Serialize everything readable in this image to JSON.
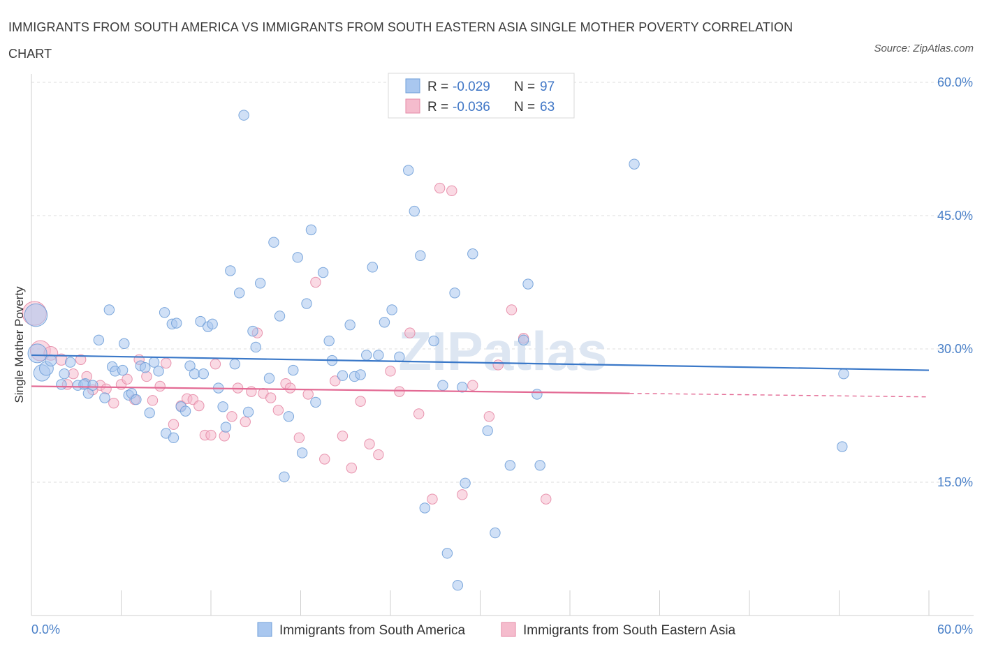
{
  "title": "IMMIGRANTS FROM SOUTH AMERICA VS IMMIGRANTS FROM SOUTH EASTERN ASIA SINGLE MOTHER POVERTY CORRELATION CHART",
  "source": "Source: ZipAtlas.com",
  "watermark": "ZIPatlas",
  "colors": {
    "blue_fill": "#a9c7ef",
    "blue_stroke": "#6f9fd8",
    "blue_line": "#3a78c8",
    "pink_fill": "#f5bccd",
    "pink_stroke": "#e58aa6",
    "pink_line": "#e36a94",
    "axis_text": "#4a80c8",
    "grid": "#dddddd"
  },
  "legend_top": {
    "rows": [
      {
        "r_label": "R =",
        "r_value": "-0.029",
        "n_label": "N =",
        "n_value": "97",
        "series": "blue"
      },
      {
        "r_label": "R =",
        "r_value": "-0.036",
        "n_label": "N =",
        "n_value": "63",
        "series": "pink"
      }
    ]
  },
  "chart_data": {
    "type": "scatter",
    "title": "IMMIGRANTS FROM SOUTH AMERICA VS IMMIGRANTS FROM SOUTH EASTERN ASIA SINGLE MOTHER POVERTY CORRELATION CHART",
    "xlabel": "",
    "ylabel": "Single Mother Poverty",
    "xlim": [
      0,
      60
    ],
    "ylim": [
      0,
      60
    ],
    "x_tick_labels": [
      "0.0%",
      "60.0%"
    ],
    "y_tick_labels": [
      "15.0%",
      "30.0%",
      "45.0%",
      "60.0%"
    ],
    "y_ticks": [
      15,
      30,
      45,
      60
    ],
    "grid": "horizontal dashed",
    "legend_position": "top-center",
    "series": [
      {
        "name": "Immigrants from South America",
        "color": "#a9c7ef",
        "trend": {
          "x": [
            0,
            60
          ],
          "y": [
            29.3,
            27.6
          ],
          "dashed_from": null
        },
        "points": [
          [
            0.3,
            33.8,
            1.8
          ],
          [
            0.4,
            29.5,
            1.5
          ],
          [
            0.7,
            27.3,
            1.3
          ],
          [
            1.0,
            27.8,
            1.1
          ],
          [
            1.3,
            28.7,
            0.9
          ],
          [
            2.2,
            27.2,
            0.8
          ],
          [
            2.0,
            26.0,
            0.8
          ],
          [
            2.6,
            28.5,
            0.8
          ],
          [
            3.1,
            25.9,
            0.8
          ],
          [
            3.6,
            26.1,
            0.8
          ],
          [
            3.8,
            25.0,
            0.8
          ],
          [
            4.1,
            25.9,
            0.8
          ],
          [
            4.5,
            31.0,
            0.8
          ],
          [
            4.9,
            24.5,
            0.8
          ],
          [
            5.2,
            34.4,
            0.8
          ],
          [
            5.4,
            28.0,
            0.8
          ],
          [
            5.6,
            27.5,
            0.8
          ],
          [
            6.1,
            27.6,
            0.8
          ],
          [
            6.2,
            30.6,
            0.8
          ],
          [
            6.5,
            24.8,
            0.8
          ],
          [
            6.7,
            25.0,
            0.8
          ],
          [
            7.0,
            24.3,
            0.8
          ],
          [
            7.3,
            28.1,
            0.8
          ],
          [
            7.6,
            27.9,
            0.8
          ],
          [
            7.9,
            22.8,
            0.8
          ],
          [
            8.2,
            28.5,
            0.8
          ],
          [
            8.5,
            27.5,
            0.8
          ],
          [
            8.9,
            34.1,
            0.8
          ],
          [
            9.0,
            20.5,
            0.8
          ],
          [
            9.4,
            32.8,
            0.8
          ],
          [
            9.7,
            32.9,
            0.8
          ],
          [
            10.0,
            23.5,
            0.8
          ],
          [
            10.3,
            23.0,
            0.8
          ],
          [
            10.6,
            28.1,
            0.8
          ],
          [
            10.9,
            27.2,
            0.8
          ],
          [
            11.3,
            33.1,
            0.8
          ],
          [
            11.5,
            27.2,
            0.8
          ],
          [
            11.8,
            32.5,
            0.8
          ],
          [
            12.1,
            32.8,
            0.8
          ],
          [
            12.5,
            25.6,
            0.8
          ],
          [
            12.8,
            23.5,
            0.8
          ],
          [
            13.0,
            21.2,
            0.8
          ],
          [
            13.3,
            38.8,
            0.8
          ],
          [
            13.6,
            28.3,
            0.8
          ],
          [
            13.9,
            36.3,
            0.8
          ],
          [
            14.2,
            56.3,
            0.8
          ],
          [
            14.5,
            22.9,
            0.8
          ],
          [
            14.8,
            32.0,
            0.8
          ],
          [
            15.0,
            30.2,
            0.8
          ],
          [
            15.3,
            37.4,
            0.8
          ],
          [
            15.9,
            26.7,
            0.8
          ],
          [
            16.2,
            42.0,
            0.8
          ],
          [
            16.6,
            33.7,
            0.8
          ],
          [
            16.9,
            15.6,
            0.8
          ],
          [
            17.2,
            22.4,
            0.8
          ],
          [
            17.5,
            27.6,
            0.8
          ],
          [
            17.8,
            40.3,
            0.8
          ],
          [
            18.1,
            18.3,
            0.8
          ],
          [
            18.4,
            35.1,
            0.8
          ],
          [
            18.7,
            43.4,
            0.8
          ],
          [
            19.0,
            24.0,
            0.8
          ],
          [
            19.5,
            38.6,
            0.8
          ],
          [
            19.9,
            30.9,
            0.8
          ],
          [
            20.1,
            28.7,
            0.8
          ],
          [
            20.8,
            27.0,
            0.8
          ],
          [
            21.3,
            32.7,
            0.8
          ],
          [
            21.6,
            26.9,
            0.8
          ],
          [
            22.0,
            27.1,
            0.8
          ],
          [
            22.4,
            29.3,
            0.8
          ],
          [
            22.8,
            39.2,
            0.8
          ],
          [
            23.2,
            29.3,
            0.8
          ],
          [
            23.6,
            33.0,
            0.8
          ],
          [
            24.1,
            34.4,
            0.8
          ],
          [
            24.6,
            29.1,
            0.8
          ],
          [
            25.2,
            50.1,
            0.8
          ],
          [
            25.6,
            45.5,
            0.8
          ],
          [
            26.0,
            40.5,
            0.8
          ],
          [
            26.3,
            12.1,
            0.8
          ],
          [
            26.9,
            30.9,
            0.8
          ],
          [
            27.5,
            25.9,
            0.8
          ],
          [
            27.8,
            7.0,
            0.8
          ],
          [
            28.3,
            36.3,
            0.8
          ],
          [
            28.5,
            3.4,
            0.8
          ],
          [
            29.0,
            14.9,
            0.8
          ],
          [
            29.5,
            40.7,
            0.8
          ],
          [
            30.5,
            20.8,
            0.8
          ],
          [
            31.0,
            9.3,
            0.8
          ],
          [
            32.0,
            16.9,
            0.8
          ],
          [
            32.9,
            31.0,
            0.8
          ],
          [
            33.2,
            37.3,
            0.8
          ],
          [
            33.8,
            24.9,
            0.8
          ],
          [
            34.0,
            16.9,
            0.8
          ],
          [
            40.3,
            50.8,
            0.8
          ],
          [
            54.3,
            27.2,
            0.8
          ],
          [
            54.2,
            19.0,
            0.8
          ],
          [
            9.5,
            20.0,
            0.8
          ],
          [
            28.8,
            25.7,
            0.8
          ],
          [
            3.5,
            26.0,
            0.8
          ]
        ]
      },
      {
        "name": "Immigrants from South Eastern Asia",
        "color": "#f5bccd",
        "trend": {
          "x": [
            0,
            40
          ],
          "y": [
            25.8,
            25.0
          ],
          "dashed_from": 40,
          "dashed_to": 60,
          "dashed_end_y": 24.6
        },
        "points": [
          [
            0.2,
            34.0,
            1.9
          ],
          [
            0.6,
            29.8,
            1.6
          ],
          [
            1.3,
            29.5,
            1.1
          ],
          [
            2.0,
            28.8,
            0.9
          ],
          [
            2.4,
            26.0,
            0.8
          ],
          [
            2.8,
            27.2,
            0.8
          ],
          [
            3.3,
            28.8,
            0.8
          ],
          [
            3.7,
            26.9,
            0.8
          ],
          [
            4.1,
            25.4,
            0.8
          ],
          [
            4.6,
            25.9,
            0.8
          ],
          [
            5.0,
            25.5,
            0.8
          ],
          [
            5.5,
            23.9,
            0.8
          ],
          [
            6.0,
            26.0,
            0.8
          ],
          [
            6.4,
            26.6,
            0.8
          ],
          [
            6.9,
            24.3,
            0.8
          ],
          [
            7.2,
            28.8,
            0.8
          ],
          [
            7.7,
            26.9,
            0.8
          ],
          [
            8.1,
            24.2,
            0.8
          ],
          [
            8.6,
            25.8,
            0.8
          ],
          [
            9.0,
            28.4,
            0.8
          ],
          [
            9.5,
            21.5,
            0.8
          ],
          [
            10.0,
            23.6,
            0.8
          ],
          [
            10.4,
            24.4,
            0.8
          ],
          [
            10.8,
            24.3,
            0.8
          ],
          [
            11.2,
            23.6,
            0.8
          ],
          [
            11.6,
            20.3,
            0.8
          ],
          [
            12.0,
            20.3,
            0.8
          ],
          [
            12.3,
            28.3,
            0.8
          ],
          [
            12.9,
            20.2,
            0.8
          ],
          [
            13.4,
            22.4,
            0.8
          ],
          [
            13.8,
            25.6,
            0.8
          ],
          [
            14.3,
            21.8,
            0.8
          ],
          [
            14.7,
            25.2,
            0.8
          ],
          [
            15.1,
            31.8,
            0.8
          ],
          [
            15.5,
            25.0,
            0.8
          ],
          [
            16.0,
            24.5,
            0.8
          ],
          [
            16.5,
            23.1,
            0.8
          ],
          [
            17.0,
            26.1,
            0.8
          ],
          [
            17.3,
            25.6,
            0.8
          ],
          [
            17.9,
            20.0,
            0.8
          ],
          [
            18.5,
            24.9,
            0.8
          ],
          [
            19.0,
            37.5,
            0.8
          ],
          [
            19.6,
            17.6,
            0.8
          ],
          [
            20.3,
            26.4,
            0.8
          ],
          [
            20.8,
            20.2,
            0.8
          ],
          [
            21.4,
            16.6,
            0.8
          ],
          [
            22.0,
            24.1,
            0.8
          ],
          [
            22.6,
            19.3,
            0.8
          ],
          [
            23.2,
            18.1,
            0.8
          ],
          [
            24.0,
            27.5,
            0.8
          ],
          [
            24.6,
            25.2,
            0.8
          ],
          [
            25.3,
            31.8,
            0.8
          ],
          [
            25.9,
            22.7,
            0.8
          ],
          [
            26.8,
            13.1,
            0.8
          ],
          [
            27.3,
            48.1,
            0.8
          ],
          [
            28.1,
            47.8,
            0.8
          ],
          [
            28.8,
            13.6,
            0.8
          ],
          [
            29.5,
            25.9,
            0.8
          ],
          [
            30.6,
            22.4,
            0.8
          ],
          [
            31.2,
            28.2,
            0.8
          ],
          [
            32.1,
            34.4,
            0.8
          ],
          [
            32.9,
            31.2,
            0.8
          ],
          [
            34.4,
            13.1,
            0.8
          ]
        ]
      }
    ]
  },
  "legend_bottom": [
    {
      "label": "Immigrants from South America",
      "series": "blue"
    },
    {
      "label": "Immigrants from South Eastern Asia",
      "series": "pink"
    }
  ]
}
